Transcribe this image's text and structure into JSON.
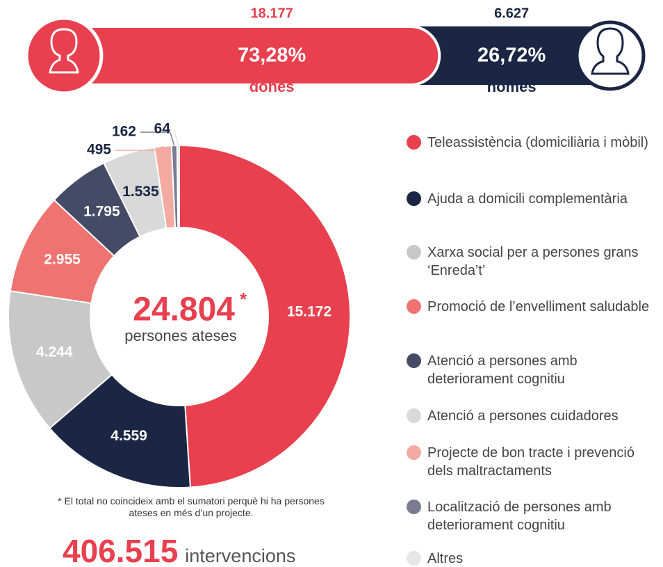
{
  "chart_data": {
    "type": "donut",
    "categories": [
      "Teleassistència (domiciliària i mòbil)",
      "Ajuda a domicili complementària",
      "Xarxa social per a persones grans ‘Enreda’t’",
      "Promoció de l’envelliment saludable",
      "Atenció a persones amb deteriorament cognitiu",
      "Atenció a persones cuidadores",
      "Projecte de bon tracte i prevenció dels maltractaments",
      "Localització de persones amb deteriorament cognitiu",
      "Altres"
    ],
    "values": [
      15172,
      4559,
      4244,
      2955,
      1795,
      1535,
      495,
      162,
      64
    ],
    "value_labels": [
      "15.172",
      "4.559",
      "4.244",
      "2.955",
      "1.795",
      "1.535",
      "495",
      "162",
      "64"
    ],
    "colors": [
      "#e8404f",
      "#1b2544",
      "#c8c8c8",
      "#ef7471",
      "#454a66",
      "#d9d9d9",
      "#f3aaa0",
      "#7a7a93",
      "#e6e6e6"
    ],
    "center_value": 24804,
    "center_label": "24.804",
    "center_mark": "*",
    "center_text": "persones ateses",
    "footnote": "* El total no coincideix amb el sumatori perquè hi ha persones ateses en més d’un projecte.",
    "interventions": 406515,
    "interventions_label": "406.515",
    "interventions_text": "intervencions",
    "gender": {
      "categories": [
        "dones",
        "homes"
      ],
      "values": [
        73.28,
        26.72
      ],
      "value_labels": [
        "73,28%",
        "26,72%"
      ],
      "counts": [
        18177,
        6627
      ],
      "count_labels": [
        "18.177",
        "6.627"
      ],
      "colors": [
        "#e8404f",
        "#1b2544"
      ]
    }
  }
}
